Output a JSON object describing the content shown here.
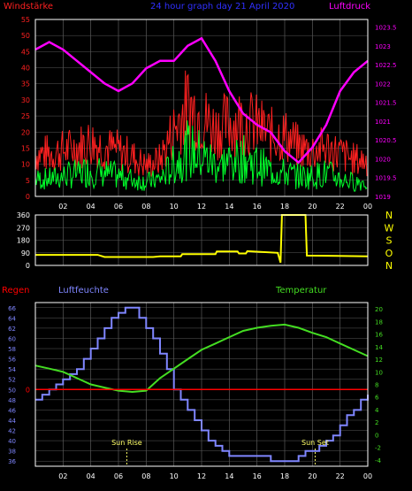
{
  "colors": {
    "background": "#000000",
    "gust": "#ff2020",
    "wind": "#00ff2a",
    "pressure": "#ff00ff",
    "direction": "#ffff00",
    "rain": "#ff0000",
    "humidity": "#7f86ff",
    "temperature": "#44dd22",
    "axis": "#ffffff",
    "grid": "#5a5a5a",
    "sun_marker": "#ffff66"
  },
  "chart_data": [
    {
      "type": "line",
      "title": "24 hour graph day  21 April 2020",
      "left_label": "Windstärke",
      "right_label": "Luftdruck",
      "x_ticks": [
        "02",
        "04",
        "06",
        "08",
        "10",
        "12",
        "14",
        "16",
        "18",
        "20",
        "22",
        "00"
      ],
      "y_left": {
        "ticks": [
          0,
          5,
          10,
          15,
          20,
          25,
          30,
          35,
          40,
          45,
          50,
          55
        ],
        "range": [
          0,
          55
        ]
      },
      "y_right": {
        "ticks": [
          1019,
          1019.5,
          1020,
          1020.5,
          1021,
          1021.5,
          1022,
          1022.5,
          1023,
          1023.5
        ],
        "range": [
          1019,
          1023.7
        ]
      },
      "series": [
        {
          "key": "gust",
          "axis": "left",
          "x": [
            0,
            1,
            2,
            3,
            4,
            5,
            6,
            7,
            8,
            9,
            10,
            11,
            12,
            13,
            14,
            15,
            16,
            17,
            18,
            19,
            20,
            21,
            22,
            23,
            24
          ],
          "values": [
            14,
            14,
            15,
            16,
            18,
            16,
            15,
            13,
            10,
            12,
            22,
            30,
            26,
            22,
            24,
            25,
            23,
            20,
            20,
            16,
            15,
            16,
            14,
            12,
            12
          ]
        },
        {
          "key": "wind",
          "axis": "left",
          "x": [
            0,
            1,
            2,
            3,
            4,
            5,
            6,
            7,
            8,
            9,
            10,
            11,
            12,
            13,
            14,
            15,
            16,
            17,
            18,
            19,
            20,
            21,
            22,
            23,
            24
          ],
          "values": [
            6,
            6,
            7,
            8,
            9,
            8,
            7,
            6,
            5,
            6,
            11,
            16,
            14,
            11,
            12,
            13,
            11,
            9,
            8,
            7,
            7,
            8,
            6,
            5,
            5
          ]
        },
        {
          "key": "pressure",
          "axis": "right",
          "x": [
            0,
            1,
            2,
            3,
            4,
            5,
            6,
            7,
            8,
            9,
            10,
            11,
            12,
            13,
            14,
            15,
            16,
            17,
            18,
            19,
            20,
            21,
            22,
            23,
            24
          ],
          "values": [
            1022.9,
            1023.1,
            1022.9,
            1022.6,
            1022.3,
            1022.0,
            1021.8,
            1022.0,
            1022.4,
            1022.6,
            1022.6,
            1023.0,
            1023.2,
            1022.6,
            1021.8,
            1021.2,
            1020.9,
            1020.7,
            1020.2,
            1019.9,
            1020.3,
            1020.9,
            1021.8,
            1022.3,
            1022.6
          ]
        }
      ]
    },
    {
      "type": "line",
      "right_ticks": [
        "N",
        "W",
        "S",
        "O",
        "N"
      ],
      "y_left": {
        "ticks": [
          0,
          90,
          180,
          270,
          360
        ],
        "range": [
          0,
          360
        ]
      },
      "x_ticks": [],
      "series": [
        {
          "key": "direction",
          "x": [
            0,
            4.5,
            5,
            8.5,
            9,
            10.5,
            10.6,
            13,
            13.1,
            14.6,
            14.7,
            15.2,
            15.3,
            17.5,
            17.7,
            17.8,
            19.5,
            19.6,
            24
          ],
          "values": [
            75,
            75,
            60,
            60,
            65,
            65,
            80,
            80,
            100,
            100,
            85,
            85,
            102,
            90,
            20,
            360,
            360,
            70,
            65
          ]
        }
      ]
    },
    {
      "type": "line",
      "rain_label": "Regen",
      "humidity_label": "Luftfeuchte",
      "temperature_label": "Temperatur",
      "x_ticks": [
        "02",
        "04",
        "06",
        "08",
        "10",
        "12",
        "14",
        "16",
        "18",
        "20",
        "22",
        "00"
      ],
      "y_left": {
        "ticks": [
          36,
          38,
          40,
          42,
          44,
          46,
          48,
          50,
          52,
          54,
          56,
          58,
          60,
          62,
          64,
          66
        ],
        "range": [
          35,
          67
        ]
      },
      "y_right": {
        "ticks": [
          -4,
          -2,
          0,
          2,
          4,
          6,
          8,
          10,
          12,
          14,
          16,
          18,
          20
        ],
        "range": [
          -5,
          21
        ]
      },
      "rain_value": 0,
      "sun_rise_label": "Sun Rise",
      "sun_set_label": "Sun Set",
      "sun_rise_hour": 6.6,
      "sun_set_hour": 20.2,
      "series": [
        {
          "key": "humidity",
          "axis": "left",
          "x": [
            0,
            0.5,
            1,
            1.5,
            2,
            2.5,
            3,
            3.5,
            4,
            4.5,
            5,
            5.5,
            6,
            6.5,
            7,
            7.5,
            8,
            8.5,
            9,
            9.5,
            10,
            10.5,
            11,
            11.5,
            12,
            12.5,
            13,
            13.5,
            14,
            14.5,
            15,
            15.5,
            16,
            16.5,
            17,
            17.5,
            18,
            18.5,
            19,
            19.5,
            20,
            20.5,
            21,
            21.5,
            22,
            22.5,
            23,
            23.5,
            24
          ],
          "values": [
            48,
            49,
            50,
            51,
            52,
            53,
            54,
            56,
            58,
            60,
            62,
            64,
            65,
            66,
            66,
            64,
            62,
            60,
            57,
            54,
            50,
            48,
            46,
            44,
            42,
            40,
            39,
            38,
            37,
            37,
            37,
            37,
            37,
            37,
            36,
            36,
            36,
            36,
            37,
            38,
            38,
            39,
            40,
            41,
            43,
            45,
            46,
            48,
            49
          ]
        },
        {
          "key": "temperature",
          "axis": "right",
          "x": [
            0,
            1,
            2,
            3,
            4,
            5,
            6,
            7,
            8,
            9,
            10,
            11,
            12,
            13,
            14,
            15,
            16,
            17,
            18,
            19,
            20,
            21,
            22,
            23,
            24
          ],
          "values": [
            11,
            10.5,
            10,
            9,
            8,
            7.5,
            7,
            6.8,
            7,
            9,
            10.5,
            12,
            13.5,
            14.5,
            15.5,
            16.5,
            17,
            17.3,
            17.5,
            17,
            16.2,
            15.5,
            14.5,
            13.5,
            12.5
          ]
        }
      ]
    }
  ]
}
